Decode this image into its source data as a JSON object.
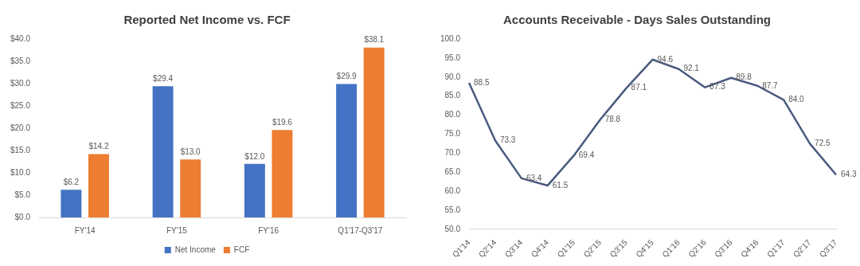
{
  "chart_data": [
    {
      "type": "bar",
      "title": "Reported Net Income vs. FCF",
      "categories": [
        "FY'14",
        "FY'15",
        "FY'16",
        "Q1'17-Q3'17"
      ],
      "series": [
        {
          "name": "Net Income",
          "color": "#4472c4",
          "values": [
            6.2,
            29.4,
            12.0,
            29.9
          ],
          "value_labels": [
            "$6.2",
            "$29.4",
            "$12.0",
            "$29.9"
          ]
        },
        {
          "name": "FCF",
          "color": "#ed7d31",
          "values": [
            14.2,
            13.0,
            19.6,
            38.1
          ],
          "value_labels": [
            "$14.2",
            "$13.0",
            "$19.6",
            "$38.1"
          ]
        }
      ],
      "ylim": [
        0,
        40
      ],
      "yticks": [
        {
          "value": 0,
          "label": "$0.0"
        },
        {
          "value": 5,
          "label": "$5.0"
        },
        {
          "value": 10,
          "label": "$10.0"
        },
        {
          "value": 15,
          "label": "$15.0"
        },
        {
          "value": 20,
          "label": "$20.0"
        },
        {
          "value": 25,
          "label": "$25.0"
        },
        {
          "value": 30,
          "label": "$30.0"
        },
        {
          "value": 35,
          "label": "$35.0"
        },
        {
          "value": 40,
          "label": "$40.0"
        }
      ],
      "grid": false,
      "legend": "bottom"
    },
    {
      "type": "line",
      "title": "Accounts Receivable - Days Sales Outstanding",
      "categories": [
        "Q1'14",
        "Q2'14",
        "Q3'14",
        "Q4'14",
        "Q1'15",
        "Q2'15",
        "Q3'15",
        "Q4'15",
        "Q1'16",
        "Q2'16",
        "Q3'16",
        "Q4'16",
        "Q1'17",
        "Q2'17",
        "Q3'17"
      ],
      "series": [
        {
          "color": "#4a5a7e",
          "values": [
            88.5,
            73.3,
            63.4,
            61.5,
            69.4,
            78.8,
            87.1,
            94.6,
            92.1,
            87.3,
            89.8,
            87.7,
            84.0,
            72.5,
            64.3
          ],
          "value_labels": [
            "88.5",
            "73.3",
            "63.4",
            "61.5",
            "69.4",
            "78.8",
            "87.1",
            "94.6",
            "92.1",
            "87.3",
            "89.8",
            "87.7",
            "84.0",
            "72.5",
            "64.3"
          ]
        }
      ],
      "ylim": [
        50,
        100
      ],
      "yticks": [
        {
          "value": 50,
          "label": "50.0"
        },
        {
          "value": 55,
          "label": "55.0"
        },
        {
          "value": 60,
          "label": "60.0"
        },
        {
          "value": 65,
          "label": "65.0"
        },
        {
          "value": 70,
          "label": "70.0"
        },
        {
          "value": 75,
          "label": "75.0"
        },
        {
          "value": 80,
          "label": "80.0"
        },
        {
          "value": 85,
          "label": "85.0"
        },
        {
          "value": 90,
          "label": "90.0"
        },
        {
          "value": 95,
          "label": "95.0"
        },
        {
          "value": 100,
          "label": "100.0"
        }
      ],
      "grid": false,
      "legend": false,
      "marker": "none",
      "line_style": "solid"
    }
  ]
}
